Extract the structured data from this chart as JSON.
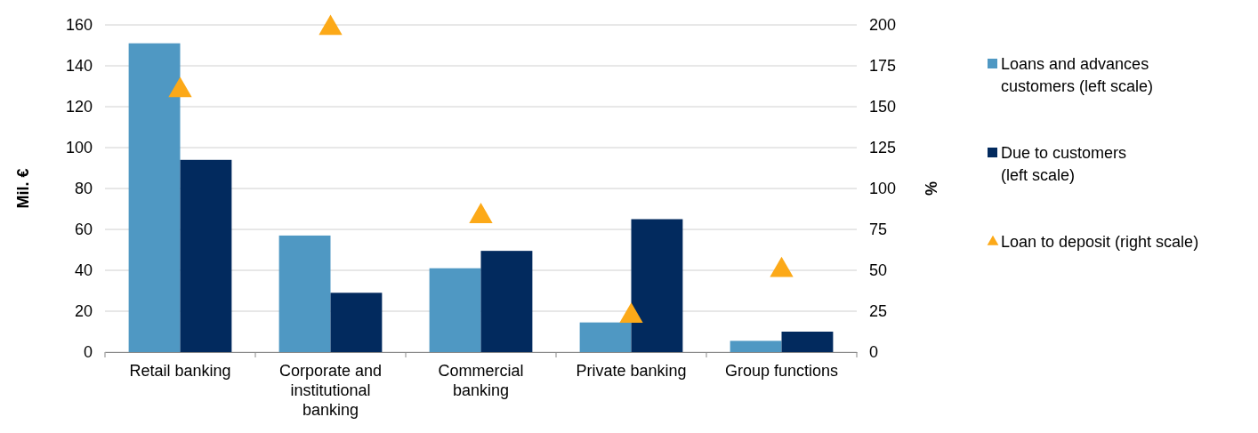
{
  "chart_data": {
    "type": "bar",
    "ylabel": "Mil. €",
    "y2label": "%",
    "categories": [
      "Retail banking",
      "Corporate and institutional banking",
      "Commercial banking",
      "Private banking",
      "Group functions"
    ],
    "series": [
      {
        "name": "Loans and advances customers (left scale)",
        "color": "#4f98c3",
        "values": [
          151,
          57,
          41,
          14.5,
          5.5
        ]
      },
      {
        "name": "Due to customers (left scale)",
        "color": "#022a5e",
        "values": [
          94,
          29,
          49.5,
          65,
          10
        ]
      },
      {
        "name": "Loan to deposit (right scale)",
        "type": "scatter",
        "axis": "y2",
        "marker": "triangle",
        "color": "#fca918",
        "values": [
          160,
          198,
          83,
          22,
          50
        ]
      }
    ],
    "ylim": [
      0,
      160
    ],
    "yticks": [
      0,
      20,
      40,
      60,
      80,
      100,
      120,
      140,
      160
    ],
    "y2lim": [
      0,
      200
    ],
    "y2ticks": [
      0,
      25,
      50,
      75,
      100,
      125,
      150,
      175,
      200
    ],
    "grid": "y",
    "legend": "right"
  }
}
